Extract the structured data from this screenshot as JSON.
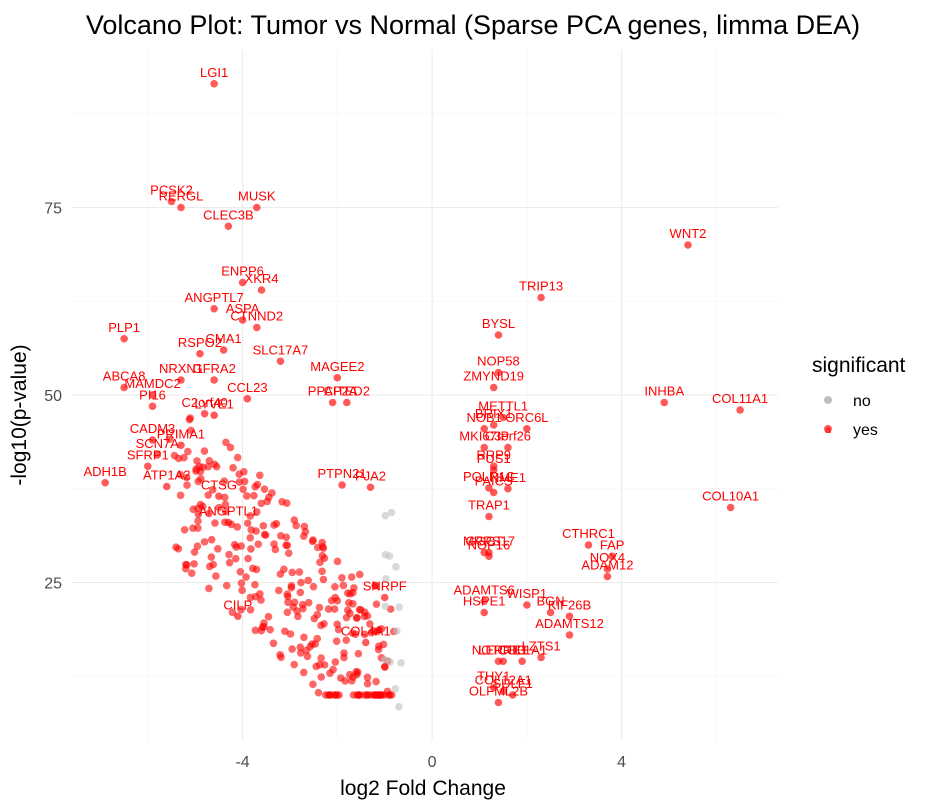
{
  "chart_data": {
    "type": "scatter",
    "title": "Volcano Plot: Tumor vs Normal (Sparse PCA genes, limma DEA)",
    "xlabel": "log2 Fold Change",
    "ylabel": "-log10(p-value)",
    "xlim": [
      -7.6,
      7.3
    ],
    "ylim": [
      4,
      96
    ],
    "xticks": [
      -4,
      0,
      4
    ],
    "yticks": [
      25,
      50,
      75
    ],
    "grid": true,
    "legend": {
      "title": "significant",
      "position": "right",
      "entries": [
        {
          "label": "no",
          "color": "#bfbfbf"
        },
        {
          "label": "yes",
          "color": "#ff0000"
        }
      ]
    },
    "colors": {
      "yes": "#ff0000",
      "no": "#bfbfbf"
    },
    "labeled_points": [
      {
        "label": "LGI1",
        "x": -4.6,
        "y": 91.5
      },
      {
        "label": "PCSK2",
        "x": -5.5,
        "y": 75.8
      },
      {
        "label": "MUSK",
        "x": -3.7,
        "y": 75.0
      },
      {
        "label": "RERGL",
        "x": -5.3,
        "y": 75.0
      },
      {
        "label": "CLEC3B",
        "x": -4.3,
        "y": 72.5
      },
      {
        "label": "ENPP6",
        "x": -4.0,
        "y": 65.0
      },
      {
        "label": "ANGPTL7",
        "x": -4.6,
        "y": 61.5
      },
      {
        "label": "XKR4",
        "x": -3.6,
        "y": 64.0
      },
      {
        "label": "ASPA",
        "x": -4.0,
        "y": 60.0
      },
      {
        "label": "CTNND2",
        "x": -3.7,
        "y": 59.0
      },
      {
        "label": "PLP1",
        "x": -6.5,
        "y": 57.5
      },
      {
        "label": "RSPO2",
        "x": -4.9,
        "y": 55.5
      },
      {
        "label": "CMA1",
        "x": -4.4,
        "y": 56.0
      },
      {
        "label": "SLC17A7",
        "x": -3.2,
        "y": 54.5
      },
      {
        "label": "ABCA8",
        "x": -6.5,
        "y": 51.0
      },
      {
        "label": "NRXN1",
        "x": -5.3,
        "y": 52.0
      },
      {
        "label": "GFRA2",
        "x": -4.6,
        "y": 52.0
      },
      {
        "label": "MAGEE2",
        "x": -2.0,
        "y": 52.3
      },
      {
        "label": "MAMDC2",
        "x": -5.9,
        "y": 50.0
      },
      {
        "label": "PPAP2A",
        "x": -2.1,
        "y": 49.0
      },
      {
        "label": "PI16",
        "x": -5.9,
        "y": 48.5
      },
      {
        "label": "C2orf40",
        "x": -4.8,
        "y": 47.5
      },
      {
        "label": "CCL23",
        "x": -3.9,
        "y": 49.5
      },
      {
        "label": "CITED2",
        "x": -1.8,
        "y": 49.0
      },
      {
        "label": "LYVE1",
        "x": -4.6,
        "y": 47.3
      },
      {
        "label": "PRIMA1",
        "x": -5.3,
        "y": 43.3
      },
      {
        "label": "CADM3",
        "x": -5.9,
        "y": 44.0
      },
      {
        "label": "SCN7A",
        "x": -5.8,
        "y": 42.0
      },
      {
        "label": "PTPN21",
        "x": -1.9,
        "y": 38.0
      },
      {
        "label": "SFRP1",
        "x": -6.0,
        "y": 40.5
      },
      {
        "label": "PJA2",
        "x": -1.3,
        "y": 37.7
      },
      {
        "label": "ADH1B",
        "x": -6.9,
        "y": 38.3
      },
      {
        "label": "ATP1A2",
        "x": -5.6,
        "y": 37.8
      },
      {
        "label": "CTSG",
        "x": -4.5,
        "y": 36.5
      },
      {
        "label": "ANGPTL1",
        "x": -4.3,
        "y": 33.0
      },
      {
        "label": "CILP",
        "x": -4.1,
        "y": 20.5
      },
      {
        "label": "TRIP13",
        "x": 2.3,
        "y": 63.0
      },
      {
        "label": "WNT2",
        "x": 5.4,
        "y": 70.0
      },
      {
        "label": "BYSL",
        "x": 1.4,
        "y": 58.0
      },
      {
        "label": "NOP58",
        "x": 1.4,
        "y": 53.0
      },
      {
        "label": "ZMYND19",
        "x": 1.3,
        "y": 51.0
      },
      {
        "label": "INHBA",
        "x": 4.9,
        "y": 49.0
      },
      {
        "label": "COL11A1",
        "x": 6.5,
        "y": 48.0
      },
      {
        "label": "BRIX1",
        "x": 1.3,
        "y": 46.0
      },
      {
        "label": "METTL1",
        "x": 1.5,
        "y": 47.0
      },
      {
        "label": "NOB1",
        "x": 1.1,
        "y": 45.5
      },
      {
        "label": "ORC6L",
        "x": 2.0,
        "y": 45.5
      },
      {
        "label": "MKI67IP",
        "x": 1.1,
        "y": 43.0
      },
      {
        "label": "C3orf26",
        "x": 1.6,
        "y": 43.0
      },
      {
        "label": "RRP9",
        "x": 1.3,
        "y": 40.5
      },
      {
        "label": "PUS1",
        "x": 1.3,
        "y": 40.0
      },
      {
        "label": "NME1",
        "x": 1.6,
        "y": 37.5
      },
      {
        "label": "POLR1C",
        "x": 1.2,
        "y": 37.6
      },
      {
        "label": "PAICS",
        "x": 1.3,
        "y": 37.0
      },
      {
        "label": "COL10A1",
        "x": 6.3,
        "y": 35.0
      },
      {
        "label": "TRAP1",
        "x": 1.2,
        "y": 33.8
      },
      {
        "label": "CTHRC1",
        "x": 3.3,
        "y": 30.0
      },
      {
        "label": "FAP",
        "x": 3.8,
        "y": 28.5
      },
      {
        "label": "GGCT",
        "x": 1.1,
        "y": 29.0
      },
      {
        "label": "MRPS17",
        "x": 1.2,
        "y": 29.0
      },
      {
        "label": "NOP16",
        "x": 1.2,
        "y": 28.5
      },
      {
        "label": "NOX4",
        "x": 3.7,
        "y": 26.8
      },
      {
        "label": "ADAM12",
        "x": 3.7,
        "y": 25.8
      },
      {
        "label": "SNRPF",
        "x": -1.0,
        "y": 23.0
      },
      {
        "label": "ADAMTS6",
        "x": 1.1,
        "y": 22.5
      },
      {
        "label": "WISP1",
        "x": 2.0,
        "y": 22.0
      },
      {
        "label": "HSPE1",
        "x": 1.1,
        "y": 21.0
      },
      {
        "label": "BGN",
        "x": 2.5,
        "y": 21.0
      },
      {
        "label": "KIF26B",
        "x": 2.9,
        "y": 20.5
      },
      {
        "label": "LEPRE1",
        "x": 1.5,
        "y": 14.5
      },
      {
        "label": "COL4A1",
        "x": -1.4,
        "y": 17.0
      },
      {
        "label": "LZTS1",
        "x": 2.3,
        "y": 15.0
      },
      {
        "label": "ADAMTS12",
        "x": 2.9,
        "y": 18.0
      },
      {
        "label": "COL1A1",
        "x": 1.9,
        "y": 14.5
      },
      {
        "label": "NOTCH3",
        "x": 1.4,
        "y": 14.5
      },
      {
        "label": "COL12A1",
        "x": 1.5,
        "y": 10.5
      },
      {
        "label": "THY1",
        "x": 1.3,
        "y": 11.0
      },
      {
        "label": "SULF1",
        "x": 1.7,
        "y": 10.0
      },
      {
        "label": "OLFML2B",
        "x": 1.4,
        "y": 9.0
      }
    ],
    "background_points": {
      "count": 300,
      "description_free": true
    }
  }
}
